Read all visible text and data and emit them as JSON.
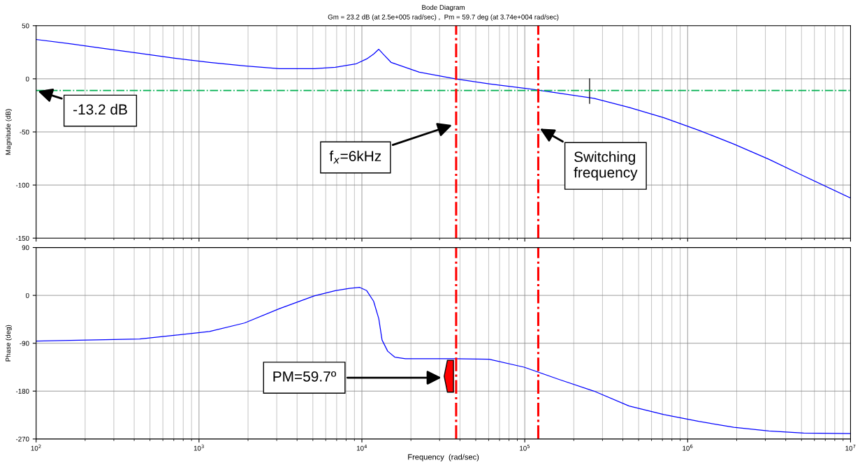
{
  "chart_data": [
    {
      "type": "line",
      "title": "Bode Diagram",
      "subtitle": "Gm = 23.2 dB (at 2.5e+005 rad/sec) ,  Pm = 59.7 deg (at 3.74e+004 rad/sec)",
      "ylabel": "Magnitude (dB)",
      "log": "x",
      "grid": true,
      "tick_labels": "y",
      "legend": false,
      "xlim": [
        100,
        10000000
      ],
      "xticks": [
        {
          "value": 100,
          "label": null
        },
        {
          "value": 1000,
          "label": null
        },
        {
          "value": 10000,
          "label": null
        },
        {
          "value": 100000,
          "label": null
        },
        {
          "value": 1000000,
          "label": null
        },
        {
          "value": 10000000,
          "label": null
        }
      ],
      "ylim": [
        -150,
        50
      ],
      "yticks": [
        -150,
        -100,
        -50,
        0,
        50
      ],
      "series": [
        {
          "color": "#0000ff",
          "x": [
            100,
            161,
            264,
            432,
            708,
            1160,
            1900,
            3120,
            5100,
            6870,
            9250,
            10700,
            11800,
            12700,
            13500,
            15100,
            22500,
            37900,
            60400,
            121000,
            266000,
            437000,
            714000,
            1170000,
            1920000,
            3150000,
            5150000,
            10000000
          ],
          "values": [
            37,
            33,
            28.5,
            24,
            19.4,
            15.5,
            12.2,
            9.6,
            9.6,
            10.9,
            14.2,
            18.7,
            23.3,
            27.8,
            23.3,
            15.5,
            6.3,
            -0.2,
            -4.7,
            -10.6,
            -18.4,
            -26.9,
            -36.6,
            -48.4,
            -61.4,
            -75.7,
            -91.4,
            -112.2
          ]
        },
        {
          "color": "#000000",
          "x": [
            250000,
            250000
          ],
          "values": [
            0,
            -23.2
          ]
        }
      ],
      "ref_lines": [
        {
          "axis": "y",
          "value": -11,
          "color": "#00b050",
          "line_style": "dashdot"
        },
        {
          "axis": "x",
          "value": 37900,
          "color": "#ff0000",
          "line_style": "dashdot"
        },
        {
          "axis": "x",
          "value": 121000,
          "color": "#ff0000",
          "line_style": "dashdot"
        }
      ],
      "annotations": [
        {
          "text": "-13.2 dB",
          "x": 100,
          "y": -11
        },
        "f$_{x}$=6kHz",
        {
          "text": "Switching\nfrequency",
          "x": 121000,
          "y": -46
        }
      ]
    },
    {
      "type": "line",
      "ylabel": "Phase (deg)",
      "xlabel": "Frequency  (rad/sec)",
      "log": "x",
      "grid": true,
      "legend": false,
      "xlim": [
        100,
        10000000
      ],
      "xticks": [
        {
          "value": 100,
          "label": "10$^{2}$"
        },
        {
          "value": 1000,
          "label": "10$^{3}$"
        },
        {
          "value": 10000,
          "label": "10$^{4}$"
        },
        {
          "value": 100000,
          "label": "10$^{5}$"
        },
        {
          "value": 1000000,
          "label": "10$^{6}$"
        },
        {
          "value": 10000000,
          "label": "10$^{7}$"
        }
      ],
      "ylim": [
        -270,
        90
      ],
      "yticks": [
        -270,
        -180,
        -90,
        0,
        90
      ],
      "series": [
        {
          "color": "#0000ff",
          "x": [
            100,
            432,
            1160,
            1900,
            3120,
            5100,
            6870,
            8380,
            9700,
            10700,
            11800,
            12700,
            13300,
            14400,
            15900,
            18500,
            36900,
            60400,
            99100,
            162000,
            266000,
            437000,
            714000,
            1170000,
            1920000,
            3150000,
            5150000,
            10000000
          ],
          "values": [
            -86,
            -82,
            -68,
            -52,
            -25,
            -1,
            9,
            13,
            15,
            9,
            -11,
            -44,
            -84,
            -105,
            -116,
            -119,
            -119,
            -120,
            -135,
            -158,
            -180,
            -208,
            -224,
            -237,
            -248,
            -255,
            -259,
            -260
          ]
        }
      ],
      "ref_lines": [
        {
          "axis": "x",
          "value": 37900,
          "color": "#ff0000",
          "line_style": "dashdot"
        },
        {
          "axis": "x",
          "value": 121000,
          "color": "#ff0000",
          "line_style": "dashdot"
        }
      ],
      "annotations": [
        "PM=59.7º"
      ]
    }
  ]
}
